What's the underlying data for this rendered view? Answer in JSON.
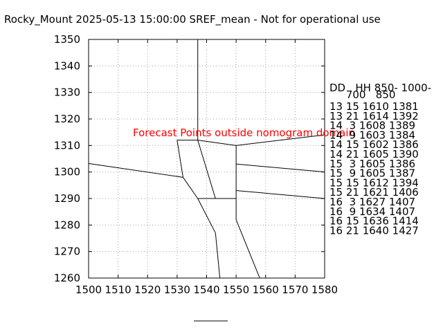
{
  "chart_data": {
    "type": "line",
    "title": "Rocky_Mount 2025-05-13 15:00:00 SREF_mean - Not for operational use",
    "xlabel": "",
    "ylabel": "",
    "xlim": [
      1500,
      1580
    ],
    "ylim": [
      1260,
      1350
    ],
    "x_ticks": [
      1500,
      1510,
      1520,
      1530,
      1540,
      1550,
      1560,
      1570,
      1580
    ],
    "y_ticks": [
      1260,
      1270,
      1280,
      1290,
      1300,
      1310,
      1320,
      1330,
      1340,
      1350
    ],
    "grid": true,
    "annotation": "Forecast Points outside nomogram domain",
    "nomogram_lines": [
      [
        [
          1537,
          1350
        ],
        [
          1537,
          1312
        ]
      ],
      [
        [
          1530,
          1312
        ],
        [
          1537,
          1312
        ]
      ],
      [
        [
          1537,
          1312
        ],
        [
          1550,
          1310
        ]
      ],
      [
        [
          1550,
          1310
        ],
        [
          1580,
          1314
        ]
      ],
      [
        [
          1530,
          1312
        ],
        [
          1532,
          1298
        ]
      ],
      [
        [
          1500,
          1303.2
        ],
        [
          1532,
          1298
        ]
      ],
      [
        [
          1532,
          1298
        ],
        [
          1537,
          1290
        ]
      ],
      [
        [
          1537,
          1312
        ],
        [
          1543,
          1290
        ]
      ],
      [
        [
          1537,
          1290
        ],
        [
          1550,
          1290
        ]
      ],
      [
        [
          1550,
          1310
        ],
        [
          1550,
          1282
        ]
      ],
      [
        [
          1550,
          1303
        ],
        [
          1580,
          1300
        ]
      ],
      [
        [
          1550,
          1293
        ],
        [
          1580,
          1290
        ]
      ],
      [
        [
          1537,
          1290
        ],
        [
          1543,
          1277
        ]
      ],
      [
        [
          1543,
          1277
        ],
        [
          1544.5,
          1260
        ]
      ],
      [
        [
          1550,
          1282
        ],
        [
          1558,
          1260
        ]
      ]
    ],
    "legend": {
      "header": [
        "DD   HH 850- 1000-",
        "     700   850"
      ],
      "rows": [
        "13 15 1610 1381",
        "13 21 1614 1392",
        "14  3 1608 1389",
        "14  9 1603 1384",
        "14 15 1602 1386",
        "14 21 1605 1390",
        "15  3 1605 1386",
        "15  9 1605 1387",
        "15 15 1612 1394",
        "15 21 1621 1406",
        "16  3 1627 1407",
        "16  9 1634 1407",
        "16 15 1636 1414",
        "16 21 1640 1427"
      ]
    }
  }
}
